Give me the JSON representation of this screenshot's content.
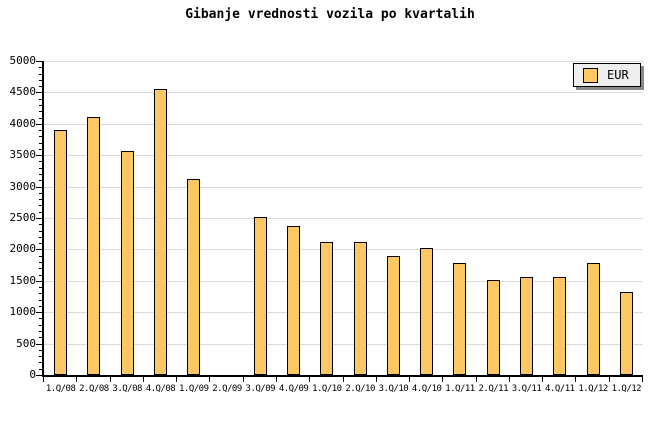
{
  "chart_data": {
    "type": "bar",
    "title": "Gibanje vrednosti vozila po kvartalih",
    "categories": [
      "1.Q/08",
      "2.Q/08",
      "3.Q/08",
      "4.Q/08",
      "1.Q/09",
      "2.Q/09",
      "3.Q/09",
      "4.Q/09",
      "1.Q/10",
      "2.Q/10",
      "3.Q/10",
      "4.Q/10",
      "1.Q/11",
      "2.Q/11",
      "3.Q/11",
      "4.Q/11",
      "1.Q/12",
      "1.Q/12"
    ],
    "series": [
      {
        "name": "EUR",
        "values": [
          3900,
          4110,
          3570,
          4560,
          3120,
          null,
          2510,
          2370,
          2120,
          2120,
          1900,
          2030,
          1780,
          1510,
          1560,
          1560,
          1780,
          1320
        ]
      }
    ],
    "xlabel": "",
    "ylabel": "",
    "ylim": [
      0,
      5000
    ],
    "y_major_tick": 500,
    "y_minor_tick": 100,
    "y_tick_labels": [
      "0",
      "500",
      "1000",
      "1500",
      "2000",
      "2500",
      "3000",
      "3500",
      "4000",
      "4500",
      "5000"
    ],
    "grid": true,
    "legend_position": "top-right",
    "legend_entries": [
      "EUR"
    ],
    "colors": {
      "bar_fill": "#FDC763",
      "bar_border": "#000000",
      "gridline": "#DCDCDC",
      "axis": "#000000",
      "text": "#000000",
      "legend_bg": "#EEEEEE",
      "legend_shadow": "#888888",
      "background": "#FFFFFF"
    }
  }
}
